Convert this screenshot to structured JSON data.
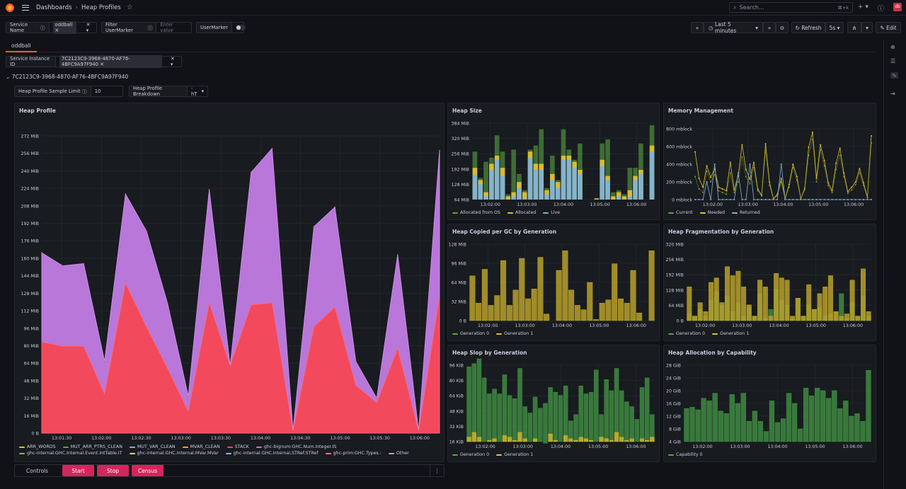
{
  "breadcrumb": {
    "root": "Dashboards",
    "current": "Heap Profiles"
  },
  "search": {
    "placeholder": "Search...",
    "shortcut": "⌘+k"
  },
  "user": {
    "avatar_text": "db"
  },
  "vars": {
    "service_name": {
      "label": "Service Name",
      "value": "oddball"
    },
    "filter_usermarker": {
      "label": "Filter UserMarker",
      "placeholder": "Enter value"
    },
    "usermarker": {
      "label": "UserMarker"
    },
    "service_instance": {
      "label": "Service Instance ID",
      "value": "7C2123C9-3968-4870-AF76-4BFC9A97F940"
    },
    "sample_limit": {
      "label": "Heap Profile Sample Limit",
      "value": "10"
    },
    "breakdown": {
      "label": "Heap Profile Breakdown",
      "value": "-hT"
    }
  },
  "time": {
    "range": "Last 5 minutes",
    "refresh": "Refresh",
    "interval": "5s",
    "edit": "Edit"
  },
  "tab": "oddball",
  "row_title": "7C2123C9-3968-4870-AF76-4BFC9A97F940",
  "controls": {
    "label": "Controls",
    "start": "Start",
    "stop": "Stop",
    "census": "Census"
  },
  "colors": {
    "red": "#f2495c",
    "purple": "#b877d9",
    "green": "#56a64b",
    "yellow": "#e0c12d",
    "blue": "#7eb3d6",
    "olive": "#c9a927",
    "bg": "#181b1f"
  },
  "panels": {
    "heap_profile": {
      "title": "Heap Profile",
      "y_ticks": [
        "0 B",
        "16 MiB",
        "32 MiB",
        "48 MiB",
        "64 MiB",
        "80 MiB",
        "96 MiB",
        "112 MiB",
        "128 MiB",
        "144 MiB",
        "160 MiB",
        "176 MiB",
        "192 MiB",
        "208 MiB",
        "224 MiB",
        "240 MiB",
        "256 MiB",
        "272 MiB"
      ],
      "x_ticks": [
        "13:01:30",
        "13:02:00",
        "13:02:30",
        "13:03:00",
        "13:03:30",
        "13:04:00",
        "13:04:30",
        "13:05:00",
        "13:05:30",
        "13:06:00"
      ],
      "legend": [
        {
          "name": "ARR_WORDS",
          "color": "#e0c12d"
        },
        {
          "name": "MUT_ARR_PTRS_CLEAN",
          "color": "#56a64b"
        },
        {
          "name": "MUT_VAR_CLEAN",
          "color": "#7eb3d6"
        },
        {
          "name": "MVAR_CLEAN",
          "color": "#ff9830"
        },
        {
          "name": "STACK",
          "color": "#f2495c"
        },
        {
          "name": "ghc-bignum:GHC.Num.Integer.IS",
          "color": "#b877d9"
        },
        {
          "name": "ghc-internal:GHC.Internal.Event.IntTable.IT",
          "color": "#73bf69"
        },
        {
          "name": "ghc-internal:GHC.Internal.MVar.MVar",
          "color": "#fade2a"
        },
        {
          "name": "ghc-internal:GHC.Internal.STRef.STRef",
          "color": "#8ab8ff"
        },
        {
          "name": "ghc-prim:GHC.Types.:",
          "color": "#ff7383"
        },
        {
          "name": "Other",
          "color": "#ca95e5"
        }
      ]
    },
    "heap_size": {
      "title": "Heap Size",
      "y_ticks": [
        "64 MiB",
        "128 MiB",
        "192 MiB",
        "256 MiB",
        "320 MiB",
        "384 MiB"
      ],
      "x_ticks": [
        "13:02:00",
        "13:03:00",
        "13:04:00",
        "13:05:00",
        "13:06:00"
      ],
      "legend": [
        {
          "name": "Allocated from OS",
          "color": "#56a64b"
        },
        {
          "name": "Allocated",
          "color": "#e0c12d"
        },
        {
          "name": "Live",
          "color": "#7eb3d6"
        }
      ]
    },
    "memory_management": {
      "title": "Memory Management",
      "y_ticks": [
        "0 mblock",
        "200 mblock",
        "400 mblock",
        "600 mblock",
        "800 mblock"
      ],
      "x_ticks": [
        "13:02:00",
        "13:03:00",
        "13:04:00",
        "13:05:00",
        "13:06:00"
      ],
      "legend": [
        {
          "name": "Current",
          "color": "#56a64b"
        },
        {
          "name": "Needed",
          "color": "#e0c12d"
        },
        {
          "name": "Returned",
          "color": "#7eb3d6"
        }
      ]
    },
    "heap_copied": {
      "title": "Heap Copied per GC by Generation",
      "y_ticks": [
        "0 B",
        "32 MiB",
        "64 MiB",
        "96 MiB",
        "128 MiB"
      ],
      "x_ticks": [
        "13:02:00",
        "13:03:00",
        "13:04:00",
        "13:05:00",
        "13:06:00"
      ],
      "legend": [
        {
          "name": "Generation 0",
          "color": "#56a64b"
        },
        {
          "name": "Generation 1",
          "color": "#e0c12d"
        }
      ]
    },
    "heap_frag": {
      "title": "Heap Fragmentation by Generation",
      "y_ticks": [
        "0 B",
        "64 MiB",
        "128 MiB",
        "192 MiB",
        "256 MiB",
        "320 MiB"
      ],
      "x_ticks": [
        "13:02:00",
        "13:03:00",
        "13:04:00",
        "13:05:00",
        "13:06:00"
      ],
      "legend": [
        {
          "name": "Generation 0",
          "color": "#56a64b"
        },
        {
          "name": "Generation 1",
          "color": "#e0c12d"
        }
      ]
    },
    "heap_slop": {
      "title": "Heap Slop by Generation",
      "y_ticks": [
        "16 KiB",
        "32 KiB",
        "48 KiB",
        "64 KiB",
        "80 KiB",
        "96 KiB"
      ],
      "x_ticks": [
        "13:02:00",
        "13:03:00",
        "13:04:00",
        "13:05:00",
        "13:06:00"
      ],
      "legend": [
        {
          "name": "Generation 0",
          "color": "#56a64b"
        },
        {
          "name": "Generation 1",
          "color": "#e0c12d"
        }
      ]
    },
    "heap_alloc": {
      "title": "Heap Allocation by Capability",
      "y_ticks": [
        "4 GiB",
        "8 GiB",
        "12 GiB",
        "16 GiB",
        "20 GiB",
        "24 GiB",
        "28 GiB"
      ],
      "x_ticks": [
        "13:02:00",
        "13:03:00",
        "13:04:00",
        "13:05:00",
        "13:06:00"
      ],
      "legend": [
        {
          "name": "Capability 0",
          "color": "#56a64b"
        }
      ]
    }
  },
  "chart_data": [
    {
      "type": "area",
      "title": "Heap Profile",
      "ylim": [
        0,
        288
      ],
      "y_unit": "MiB",
      "series": [
        {
          "name": "STACK",
          "values": [
            84,
            80,
            80,
            36,
            138,
            98,
            60,
            20,
            120,
            62,
            118,
            120,
            2,
            98,
            116,
            44,
            28,
            78,
            2,
            126
          ]
        },
        {
          "name": "ghc-bignum:GHC.Num.Integer.IS",
          "values": [
            82,
            74,
            76,
            30,
            82,
            88,
            60,
            14,
            104,
            0,
            122,
            142,
            0,
            92,
            92,
            22,
            4,
            86,
            0,
            134
          ]
        }
      ]
    },
    {
      "type": "bar",
      "title": "Heap Size",
      "ylim": [
        0,
        400
      ],
      "y_unit": "MiB",
      "series": [
        {
          "name": "Live",
          "values": [
            145,
            100,
            40,
            170,
            220,
            140,
            10,
            40,
            80,
            30,
            230,
            170,
            170,
            50,
            120,
            80,
            220,
            220,
            180,
            150,
            10,
            10,
            15,
            190,
            120,
            20,
            40,
            20,
            40,
            120,
            150,
            10,
            260
          ]
        },
        {
          "name": "Allocated",
          "values": [
            180,
            120,
            60,
            200,
            240,
            180,
            40,
            60,
            110,
            60,
            260,
            200,
            200,
            70,
            150,
            110,
            240,
            240,
            210,
            170,
            20,
            20,
            30,
            220,
            140,
            40,
            60,
            40,
            70,
            140,
            170,
            20,
            290
          ]
        },
        {
          "name": "Allocated from OS",
          "values": [
            260,
            130,
            210,
            230,
            340,
            260,
            50,
            270,
            150,
            70,
            270,
            290,
            370,
            80,
            240,
            120,
            370,
            270,
            220,
            300,
            20,
            20,
            30,
            300,
            320,
            60,
            70,
            50,
            180,
            180,
            300,
            20,
            390
          ]
        }
      ]
    },
    {
      "type": "line",
      "title": "Memory Management",
      "ylim": [
        0,
        800
      ],
      "y_unit": "mblock",
      "series": [
        {
          "name": "Needed",
          "values": [
            540,
            240,
            140,
            380,
            250,
            350,
            140,
            120,
            100,
            420,
            110,
            270,
            620,
            340,
            230,
            420,
            120,
            50,
            630,
            200,
            10,
            60,
            240,
            10,
            170,
            400,
            260,
            10,
            130,
            590,
            760,
            240,
            620,
            440,
            190,
            100,
            410,
            580,
            300,
            90,
            140,
            200,
            350,
            190,
            30,
            720
          ]
        },
        {
          "name": "Current",
          "values": [
            260,
            120,
            80,
            320,
            200,
            280,
            100,
            80,
            60,
            300,
            80,
            200,
            480,
            260,
            180,
            360,
            100,
            40,
            560,
            160,
            10,
            40,
            200,
            10,
            140,
            360,
            220,
            10,
            110,
            500,
            680,
            200,
            560,
            380,
            160,
            80,
            340,
            500,
            260,
            70,
            110,
            170,
            300,
            160,
            20,
            640
          ]
        },
        {
          "name": "Returned",
          "values": [
            0,
            0,
            0,
            200,
            0,
            400,
            0,
            0,
            0,
            0,
            0,
            300,
            0,
            0,
            400,
            0,
            0,
            0,
            0,
            0,
            0,
            0,
            400,
            0,
            0,
            0,
            0,
            0,
            0,
            0,
            0,
            0,
            0,
            0,
            0,
            0,
            0,
            0,
            0,
            0,
            0,
            0,
            0,
            0,
            0,
            0
          ]
        }
      ]
    },
    {
      "type": "bar",
      "title": "Heap Copied per GC by Generation",
      "ylim": [
        0,
        140
      ],
      "y_unit": "MiB",
      "series": [
        {
          "name": "Generation 1",
          "values": [
            82,
            32,
            94,
            28,
            46,
            110,
            28,
            56,
            114,
            40,
            58,
            116,
            12,
            0,
            92,
            128,
            56,
            28,
            20,
            70,
            2,
            32,
            38,
            104,
            40,
            32,
            92,
            14,
            0,
            128
          ]
        }
      ]
    },
    {
      "type": "bar",
      "title": "Heap Fragmentation by Generation",
      "ylim": [
        0,
        340
      ],
      "y_unit": "MiB",
      "series": [
        {
          "name": "Generation 0",
          "values": [
            30,
            20,
            50,
            20,
            90,
            130,
            70,
            110,
            40,
            80,
            20,
            60,
            20,
            120,
            10,
            50,
            140,
            90,
            70,
            10,
            100,
            20,
            70,
            50,
            60,
            20,
            30,
            40,
            120,
            10,
            80,
            20,
            110,
            20
          ]
        },
        {
          "name": "Generation 1",
          "values": [
            150,
            20,
            80,
            40,
            170,
            190,
            80,
            240,
            200,
            220,
            150,
            70,
            20,
            180,
            150,
            20,
            210,
            190,
            180,
            20,
            100,
            20,
            160,
            50,
            120,
            150,
            200,
            40,
            20,
            30,
            180,
            20,
            230,
            40
          ]
        }
      ]
    },
    {
      "type": "bar",
      "title": "Heap Slop by Generation",
      "ylim": [
        0,
        104
      ],
      "y_unit": "KiB",
      "series": [
        {
          "name": "Generation 1",
          "values": [
            14,
            20,
            14,
            8,
            10,
            12,
            8,
            16,
            14,
            10,
            20,
            12,
            8,
            12,
            8,
            6,
            18,
            10,
            8,
            16,
            12,
            10,
            14,
            12,
            10,
            8,
            14,
            12,
            10,
            20,
            14,
            10,
            12,
            8,
            12,
            10,
            14
          ]
        },
        {
          "name": "Generation 0",
          "values": [
            88,
            86,
            98,
            80,
            58,
            62,
            60,
            76,
            52,
            52,
            80,
            40,
            36,
            52,
            42,
            50,
            58,
            60,
            58,
            62,
            22,
            32,
            64,
            56,
            60,
            90,
            28,
            74,
            62,
            80,
            58,
            48,
            40,
            28,
            64,
            78,
            28
          ]
        }
      ]
    },
    {
      "type": "bar",
      "title": "Heap Allocation by Capability",
      "ylim": [
        0,
        30
      ],
      "y_unit": "GiB",
      "series": [
        {
          "name": "Capability 0",
          "values": [
            13,
            13.5,
            12.5,
            17,
            16,
            19,
            12,
            11,
            18.5,
            15,
            19,
            8,
            12,
            8,
            4,
            16,
            7.5,
            9,
            19,
            15,
            5,
            21,
            18,
            21,
            20,
            17,
            20,
            13,
            16,
            10,
            11,
            8,
            28
          ]
        }
      ]
    }
  ]
}
